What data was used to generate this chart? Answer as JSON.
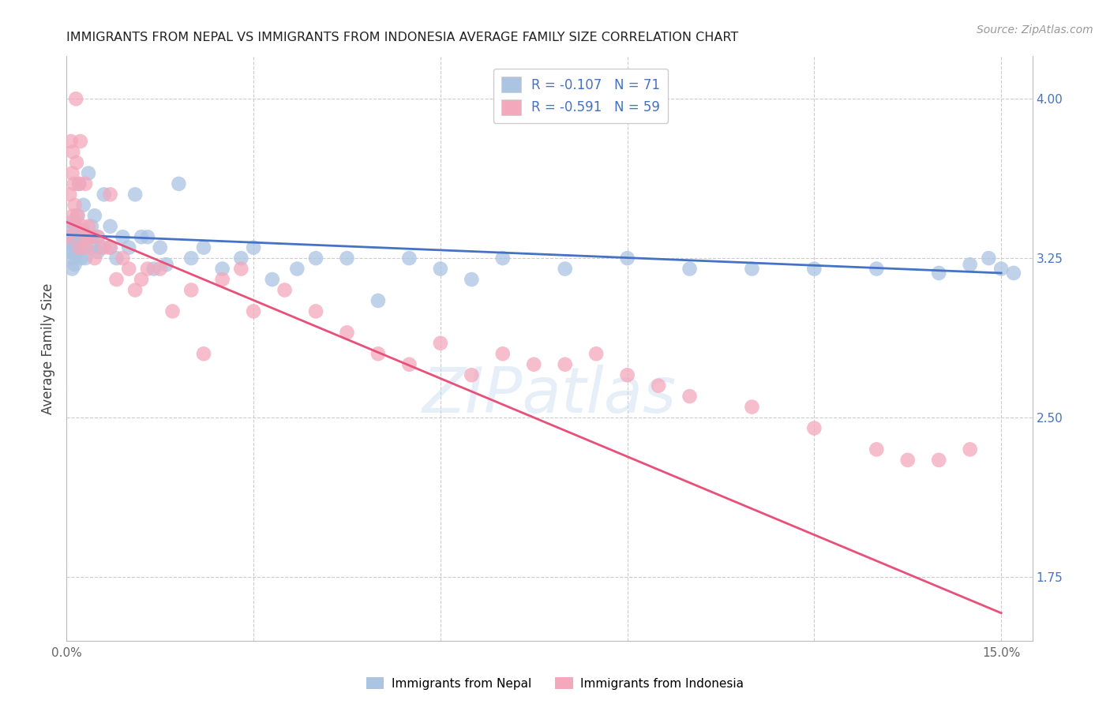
{
  "title": "IMMIGRANTS FROM NEPAL VS IMMIGRANTS FROM INDONESIA AVERAGE FAMILY SIZE CORRELATION CHART",
  "source": "Source: ZipAtlas.com",
  "ylabel": "Average Family Size",
  "nepal_R": -0.107,
  "nepal_N": 71,
  "indonesia_R": -0.591,
  "indonesia_N": 59,
  "nepal_color": "#aac4e2",
  "indonesia_color": "#f4a8bc",
  "nepal_line_color": "#4472c4",
  "indonesia_line_color": "#e8507a",
  "legend_text_color": "#4472c4",
  "background_color": "#ffffff",
  "watermark": "ZIPatlas",
  "yticks_right": [
    1.75,
    2.5,
    3.25,
    4.0
  ],
  "ylim": [
    1.45,
    4.2
  ],
  "xlim": [
    0.0,
    0.155
  ],
  "nepal_x": [
    0.0003,
    0.0005,
    0.0007,
    0.0008,
    0.0009,
    0.001,
    0.001,
    0.001,
    0.0012,
    0.0013,
    0.0014,
    0.0015,
    0.0015,
    0.0016,
    0.0017,
    0.0018,
    0.002,
    0.002,
    0.0022,
    0.0023,
    0.0025,
    0.0027,
    0.003,
    0.003,
    0.0032,
    0.0035,
    0.004,
    0.004,
    0.0042,
    0.0045,
    0.005,
    0.005,
    0.0055,
    0.006,
    0.007,
    0.007,
    0.008,
    0.009,
    0.01,
    0.011,
    0.012,
    0.013,
    0.014,
    0.015,
    0.016,
    0.018,
    0.02,
    0.022,
    0.025,
    0.028,
    0.03,
    0.033,
    0.037,
    0.04,
    0.045,
    0.05,
    0.055,
    0.06,
    0.065,
    0.07,
    0.08,
    0.09,
    0.1,
    0.11,
    0.12,
    0.13,
    0.14,
    0.145,
    0.148,
    0.15,
    0.152
  ],
  "nepal_y": [
    3.35,
    3.28,
    3.32,
    3.42,
    3.2,
    3.38,
    3.3,
    3.25,
    3.35,
    3.22,
    3.4,
    3.33,
    3.27,
    3.3,
    3.45,
    3.35,
    3.6,
    3.35,
    3.3,
    3.25,
    3.38,
    3.5,
    3.3,
    3.25,
    3.35,
    3.65,
    3.4,
    3.3,
    3.35,
    3.45,
    3.28,
    3.35,
    3.3,
    3.55,
    3.3,
    3.4,
    3.25,
    3.35,
    3.3,
    3.55,
    3.35,
    3.35,
    3.2,
    3.3,
    3.22,
    3.6,
    3.25,
    3.3,
    3.2,
    3.25,
    3.3,
    3.15,
    3.2,
    3.25,
    3.25,
    3.05,
    3.25,
    3.2,
    3.15,
    3.25,
    3.2,
    3.25,
    3.2,
    3.2,
    3.2,
    3.2,
    3.18,
    3.22,
    3.25,
    3.2,
    3.18
  ],
  "indonesia_x": [
    0.0003,
    0.0005,
    0.0007,
    0.0009,
    0.001,
    0.001,
    0.0012,
    0.0013,
    0.0014,
    0.0015,
    0.0016,
    0.0018,
    0.002,
    0.002,
    0.0022,
    0.0025,
    0.003,
    0.003,
    0.0032,
    0.0035,
    0.004,
    0.0045,
    0.005,
    0.006,
    0.007,
    0.007,
    0.008,
    0.009,
    0.01,
    0.011,
    0.012,
    0.013,
    0.015,
    0.017,
    0.02,
    0.022,
    0.025,
    0.028,
    0.03,
    0.035,
    0.04,
    0.045,
    0.05,
    0.055,
    0.06,
    0.065,
    0.07,
    0.075,
    0.08,
    0.085,
    0.09,
    0.095,
    0.1,
    0.11,
    0.12,
    0.13,
    0.135,
    0.14,
    0.145
  ],
  "indonesia_y": [
    3.35,
    3.55,
    3.8,
    3.65,
    3.45,
    3.75,
    3.6,
    3.5,
    3.4,
    4.0,
    3.7,
    3.45,
    3.3,
    3.6,
    3.8,
    3.4,
    3.35,
    3.6,
    3.3,
    3.4,
    3.35,
    3.25,
    3.35,
    3.3,
    3.3,
    3.55,
    3.15,
    3.25,
    3.2,
    3.1,
    3.15,
    3.2,
    3.2,
    3.0,
    3.1,
    2.8,
    3.15,
    3.2,
    3.0,
    3.1,
    3.0,
    2.9,
    2.8,
    2.75,
    2.85,
    2.7,
    2.8,
    2.75,
    2.75,
    2.8,
    2.7,
    2.65,
    2.6,
    2.55,
    2.45,
    2.35,
    2.3,
    2.3,
    2.35
  ]
}
